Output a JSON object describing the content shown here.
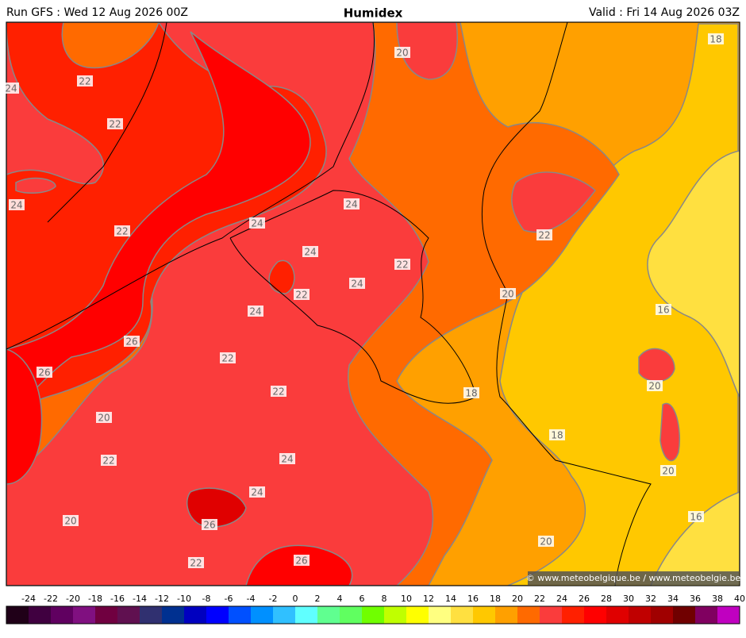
{
  "header": {
    "run": "Run GFS : Wed 12 Aug 2026 00Z",
    "title": "Humidex",
    "valid": "Valid : Fri 14 Aug 2026 03Z"
  },
  "contour_labels": [
    24,
    22,
    22,
    20,
    18,
    24,
    22,
    24,
    24,
    24,
    22,
    24,
    22,
    22,
    20,
    24,
    16,
    26,
    22,
    26,
    20,
    22,
    18,
    20,
    18,
    22,
    24,
    20,
    24,
    20,
    26,
    16,
    20,
    22,
    26
  ],
  "credit": "© www.meteobelgique.be / www.meteobelgie.be",
  "colorbar": {
    "ticks": [
      -24,
      -22,
      -20,
      -18,
      -16,
      -14,
      -12,
      -10,
      -8,
      -6,
      -4,
      -2,
      0,
      2,
      4,
      6,
      8,
      10,
      12,
      14,
      16,
      18,
      20,
      22,
      24,
      26,
      28,
      30,
      32,
      34,
      36,
      38,
      40
    ],
    "colors": [
      "#200018",
      "#400040",
      "#600060",
      "#801080",
      "#700040",
      "#601050",
      "#303070",
      "#003090",
      "#0000c0",
      "#0000ff",
      "#0050ff",
      "#0090ff",
      "#30c0ff",
      "#60ffff",
      "#60ff90",
      "#60ff60",
      "#70ff00",
      "#c0ff00",
      "#ffff00",
      "#ffff80",
      "#ffe040",
      "#ffc800",
      "#ffa000",
      "#ff6a00",
      "#fa3c3c",
      "#ff2000",
      "#ff0000",
      "#e00000",
      "#c00000",
      "#a00000",
      "#700000",
      "#800060",
      "#c000c0"
    ]
  }
}
